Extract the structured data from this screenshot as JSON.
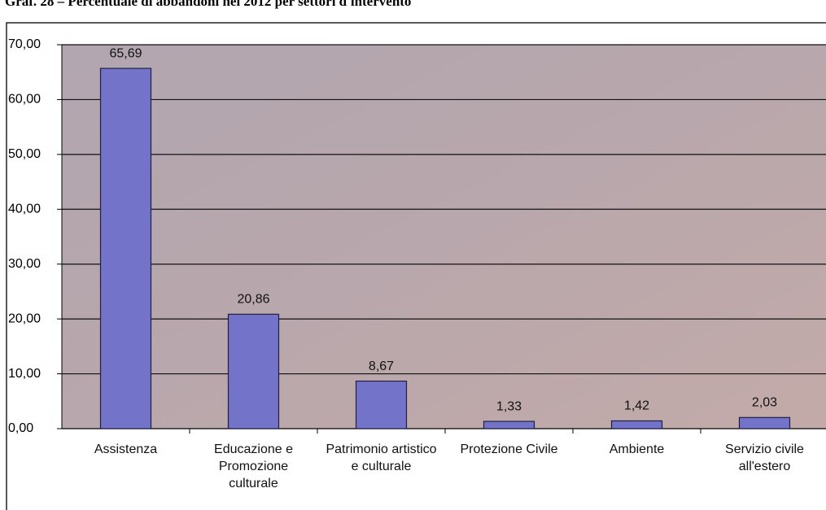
{
  "chart_data": {
    "type": "bar",
    "title": "Graf. 28 – Percentuale di abbandoni nel 2012 per settori d'intervento",
    "categories": [
      "Assistenza",
      "Educazione e Promozione culturale",
      "Patrimonio artistico e culturale",
      "Protezione Civile",
      "Ambiente",
      "Servizio civile all'estero"
    ],
    "values": [
      65.69,
      20.86,
      8.67,
      1.33,
      1.42,
      2.03
    ],
    "value_labels": [
      "65,69",
      "20,86",
      "8,67",
      "1,33",
      "1,42",
      "2,03"
    ],
    "color": "#7373c9",
    "ylim": [
      0,
      70
    ],
    "yticks": [
      {
        "value": 0,
        "label": "0,00"
      },
      {
        "value": 10,
        "label": "10,00"
      },
      {
        "value": 20,
        "label": "20,00"
      },
      {
        "value": 30,
        "label": "30,00"
      },
      {
        "value": 40,
        "label": "40,00"
      },
      {
        "value": 50,
        "label": "50,00"
      },
      {
        "value": 60,
        "label": "60,00"
      },
      {
        "value": 70,
        "label": "70,00"
      }
    ],
    "grid": true
  }
}
